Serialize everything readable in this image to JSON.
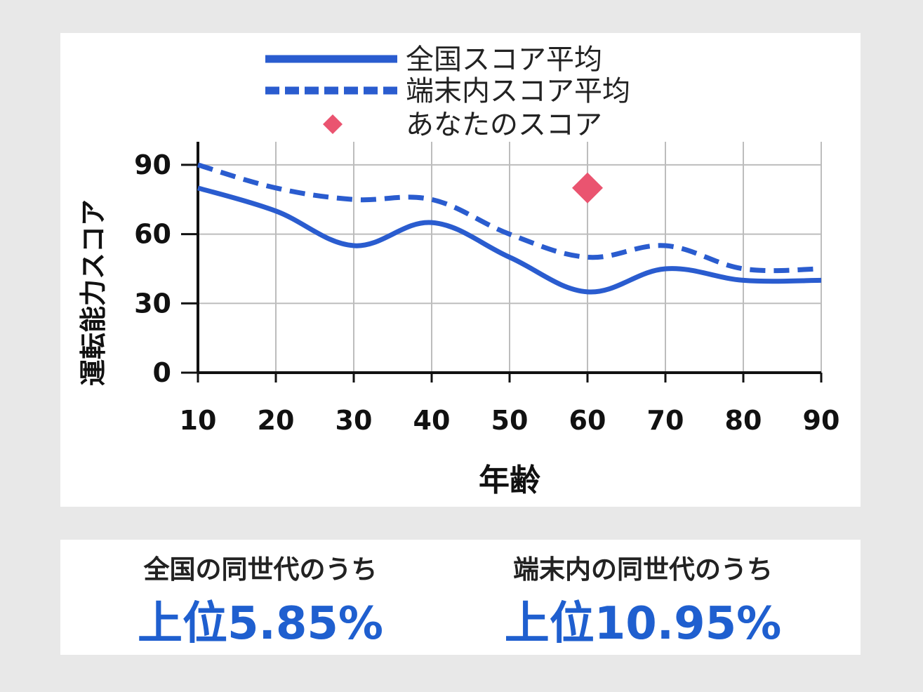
{
  "chart_data": {
    "type": "line",
    "title": "",
    "xlabel": "年齢",
    "ylabel": "運転能力スコア",
    "x": [
      10,
      20,
      30,
      40,
      50,
      60,
      70,
      80,
      90
    ],
    "x_ticks": [
      "10",
      "20",
      "30",
      "40",
      "50",
      "60",
      "70",
      "80",
      "90"
    ],
    "y_ticks": [
      "0",
      "30",
      "60",
      "90"
    ],
    "xlim": [
      10,
      90
    ],
    "ylim": [
      0,
      100
    ],
    "grid": true,
    "legend_position": "top-center",
    "series": [
      {
        "name": "全国スコア平均",
        "style": "solid",
        "color": "#2a5ccf",
        "values": [
          80,
          70,
          55,
          65,
          50,
          35,
          45,
          40,
          40
        ]
      },
      {
        "name": "端末内スコア平均",
        "style": "dashed",
        "color": "#2a5ccf",
        "values": [
          90,
          80,
          75,
          75,
          60,
          50,
          55,
          45,
          45
        ]
      },
      {
        "name": "あなたのスコア",
        "style": "marker-diamond",
        "color": "#ea5470",
        "points": [
          {
            "x": 60,
            "y": 80
          }
        ]
      }
    ]
  },
  "stats": {
    "national": {
      "label": "全国の同世代のうち",
      "value": "上位5.85%"
    },
    "device": {
      "label": "端末内の同世代のうち",
      "value": "上位10.95%"
    }
  },
  "colors": {
    "line": "#2a5ccf",
    "marker": "#ea5470",
    "stat_value": "#1f5fcf",
    "grid": "#bdbdbd",
    "axis": "#111111"
  }
}
